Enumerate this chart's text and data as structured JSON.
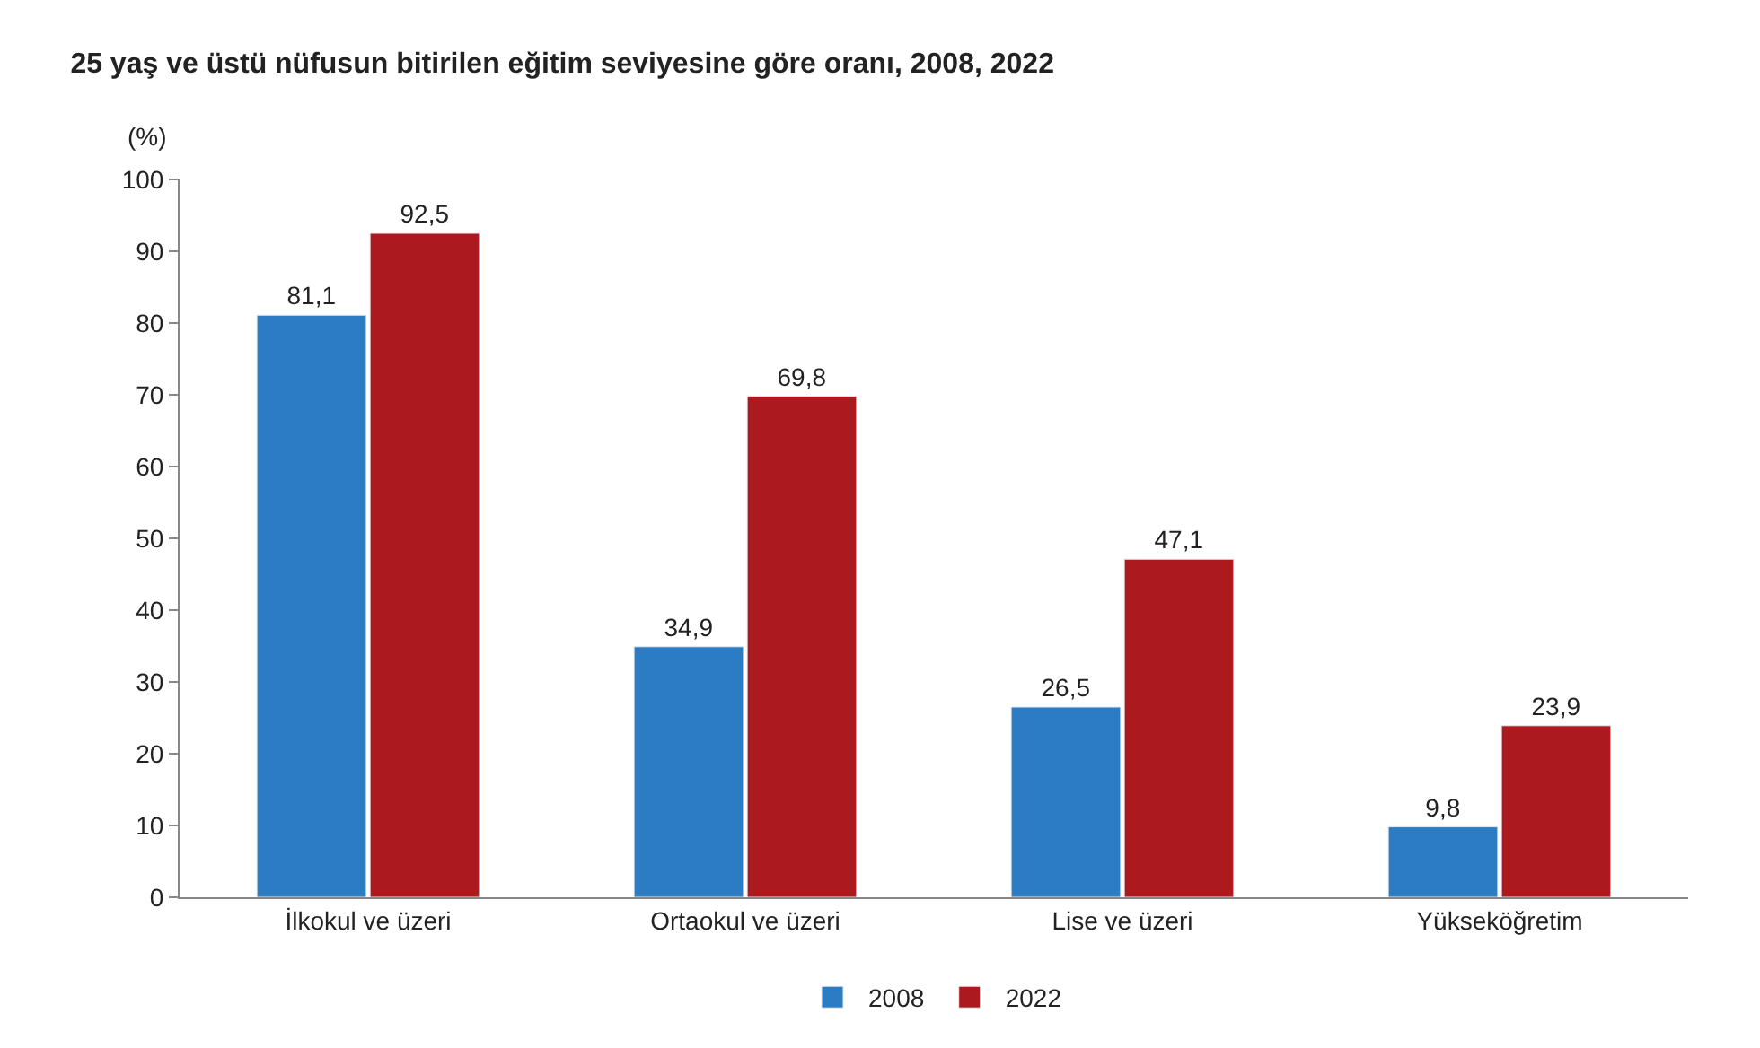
{
  "chart_data": {
    "type": "bar",
    "title": "25 yaş ve üstü nüfusun bitirilen eğitim seviyesine göre oranı, 2008, 2022",
    "ylabel": "(%)",
    "categories": [
      "İlkokul ve üzeri",
      "Ortaokul ve üzeri",
      "Lise ve üzeri",
      "Yükseköğretim"
    ],
    "series": [
      {
        "name": "2008",
        "color": "#2b7cc2",
        "values": [
          81.1,
          34.9,
          26.5,
          9.8
        ],
        "value_labels": [
          "81,1",
          "34,9",
          "26,5",
          "9,8"
        ]
      },
      {
        "name": "2022",
        "color": "#ad1a1e",
        "values": [
          92.5,
          69.8,
          47.1,
          23.9
        ],
        "value_labels": [
          "92,5",
          "69,8",
          "47,1",
          "23,9"
        ]
      }
    ],
    "ylim": [
      0,
      100
    ],
    "yticks": [
      0,
      10,
      20,
      30,
      40,
      50,
      60,
      70,
      80,
      90,
      100
    ],
    "legend": "bottom"
  }
}
